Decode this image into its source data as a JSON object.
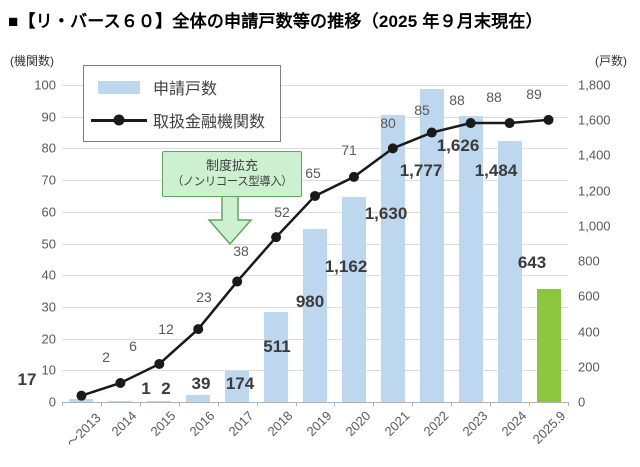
{
  "title": "■【リ・バース６０】全体の申請戸数等の推移（2025 年９月末現在）",
  "left_axis": {
    "unit": "(機関数)",
    "min": 0,
    "max": 100,
    "step": 10,
    "ticks": [
      "0",
      "10",
      "20",
      "30",
      "40",
      "50",
      "60",
      "70",
      "80",
      "90",
      "100"
    ]
  },
  "right_axis": {
    "unit": "(戸数)",
    "min": 0,
    "max": 1800,
    "step": 200,
    "ticks": [
      "0",
      "200",
      "400",
      "600",
      "800",
      "1,000",
      "1,200",
      "1,400",
      "1,600",
      "1,800"
    ]
  },
  "legend": {
    "bar_label": "申請戸数",
    "line_label": "取扱金融機関数"
  },
  "annotation": {
    "line1": "制度拡充",
    "line2": "（ノンリコース型導入）",
    "points_at": "2017"
  },
  "chart_data": {
    "type": "bar",
    "subtype": "bar+line dual axis",
    "categories": [
      "～2013",
      "2014",
      "2015",
      "2016",
      "2017",
      "2018",
      "2019",
      "2020",
      "2021",
      "2022",
      "2023",
      "2024",
      "2025.9"
    ],
    "series": [
      {
        "name": "申請戸数",
        "type": "bar",
        "axis": "right",
        "values": [
          17,
          1,
          2,
          39,
          174,
          511,
          980,
          1162,
          1630,
          1777,
          1626,
          1484,
          643
        ],
        "labels": [
          "17",
          "1",
          "2",
          "39",
          "174",
          "511",
          "980",
          "1,162",
          "1,630",
          "1,777",
          "1,626",
          "1,484",
          "643"
        ]
      },
      {
        "name": "取扱金融機関数",
        "type": "line",
        "axis": "left",
        "values": [
          2,
          6,
          12,
          23,
          38,
          52,
          65,
          71,
          80,
          85,
          88,
          88,
          89
        ],
        "labels": [
          "2",
          "6",
          "12",
          "23",
          "38",
          "52",
          "65",
          "71",
          "80",
          "85",
          "88",
          "88",
          "89"
        ]
      }
    ],
    "left_ylim": [
      0,
      100
    ],
    "right_ylim": [
      0,
      1800
    ],
    "grid": true,
    "legend_position": "top-left-inside"
  },
  "colors": {
    "bar": "#BDD7EE",
    "bar_last": "#8CC63F",
    "line": "#1a1a1a",
    "grid": "#DCDCDC",
    "annotation_bg": "#CDF1D0",
    "annotation_border": "#63A663"
  }
}
